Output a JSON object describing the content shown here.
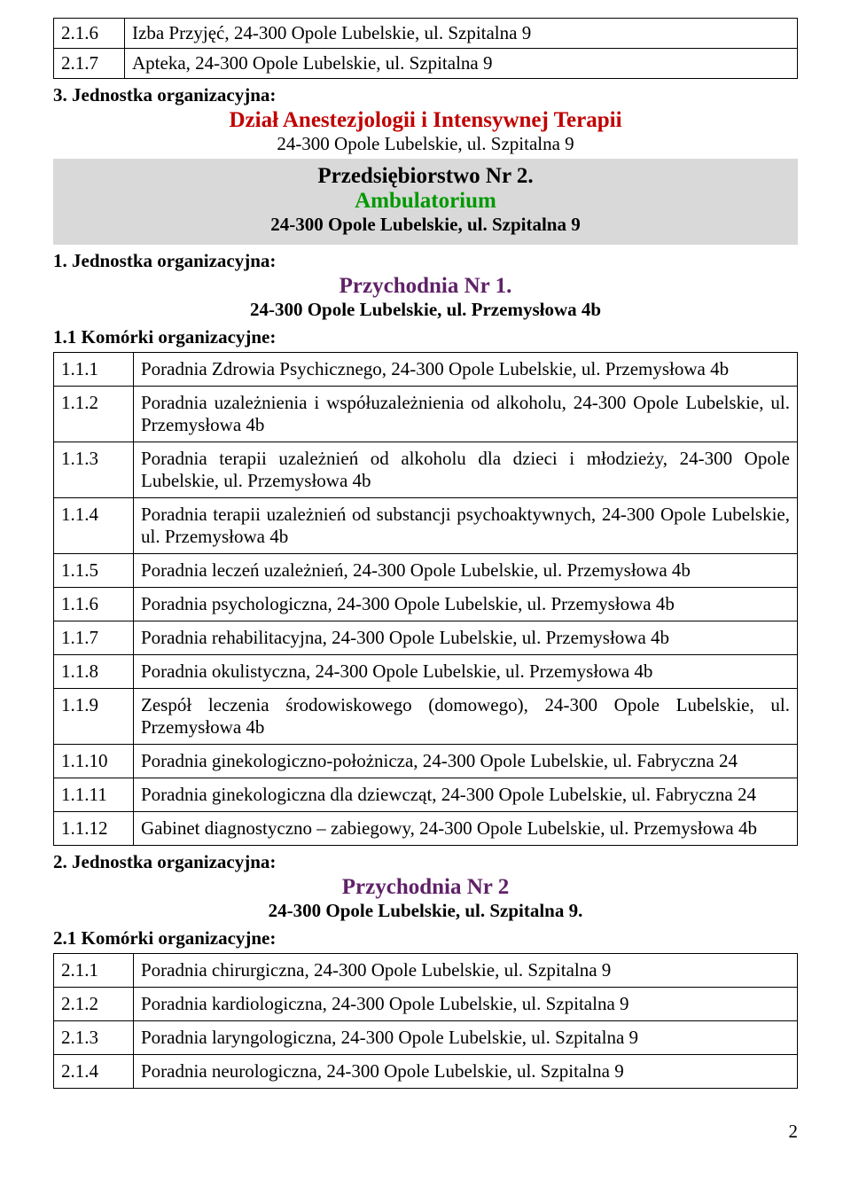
{
  "colors": {
    "red": "#c00000",
    "green": "#009900",
    "purple": "#5f2167",
    "gray_bg": "#d9d9d9",
    "text": "#000000",
    "border": "#000000"
  },
  "font_sizes": {
    "body": 21,
    "title": 25
  },
  "top_rows": [
    {
      "num": "2.1.6",
      "text": "Izba Przyjęć, 24-300 Opole Lubelskie, ul. Szpitalna 9"
    },
    {
      "num": "2.1.7",
      "text": "Apteka, 24-300 Opole Lubelskie, ul. Szpitalna 9"
    }
  ],
  "unit3": {
    "heading": "3. Jednostka organizacyjna:",
    "title": "Dział Anestezjologii i Intensywnej Terapii",
    "address": "24-300 Opole Lubelskie, ul. Szpitalna 9"
  },
  "enterprise": {
    "line1": "Przedsiębiorstwo Nr 2.",
    "line2": "Ambulatorium",
    "address": "24-300 Opole Lubelskie, ul. Szpitalna 9"
  },
  "unit1": {
    "heading": "1. Jednostka organizacyjna:",
    "title": "Przychodnia Nr 1.",
    "address": "24-300 Opole Lubelskie, ul. Przemysłowa 4b"
  },
  "cells1_heading": "1.1 Komórki organizacyjne:",
  "rows1": [
    {
      "num": "1.1.1",
      "text": "Poradnia Zdrowia Psychicznego, 24-300 Opole Lubelskie, ul. Przemysłowa 4b"
    },
    {
      "num": "1.1.2",
      "text": "Poradnia uzależnienia i współuzależnienia od alkoholu, 24-300 Opole Lubelskie, ul. Przemysłowa 4b"
    },
    {
      "num": "1.1.3",
      "text": "Poradnia terapii uzależnień od alkoholu dla dzieci i młodzieży, 24-300 Opole Lubelskie, ul. Przemysłowa 4b"
    },
    {
      "num": "1.1.4",
      "text": "Poradnia terapii uzależnień od substancji psychoaktywnych, 24-300 Opole Lubelskie, ul. Przemysłowa 4b"
    },
    {
      "num": "1.1.5",
      "text": "Poradnia leczeń uzależnień, 24-300 Opole Lubelskie, ul. Przemysłowa 4b"
    },
    {
      "num": "1.1.6",
      "text": "Poradnia psychologiczna, 24-300 Opole Lubelskie, ul. Przemysłowa 4b"
    },
    {
      "num": "1.1.7",
      "text": "Poradnia rehabilitacyjna, 24-300 Opole Lubelskie, ul. Przemysłowa 4b"
    },
    {
      "num": "1.1.8",
      "text": "Poradnia okulistyczna, 24-300 Opole Lubelskie, ul. Przemysłowa 4b"
    },
    {
      "num": "1.1.9",
      "text": "Zespół leczenia środowiskowego (domowego), 24-300 Opole Lubelskie, ul. Przemysłowa 4b"
    },
    {
      "num": "1.1.10",
      "text": "Poradnia ginekologiczno-położnicza, 24-300 Opole Lubelskie, ul. Fabryczna 24"
    },
    {
      "num": "1.1.11",
      "text": "Poradnia ginekologiczna dla dziewcząt, 24-300 Opole Lubelskie, ul. Fabryczna 24"
    },
    {
      "num": "1.1.12",
      "text": "Gabinet diagnostyczno – zabiegowy, 24-300 Opole Lubelskie, ul. Przemysłowa 4b"
    }
  ],
  "unit2": {
    "heading": "2. Jednostka organizacyjna:",
    "title": "Przychodnia Nr 2",
    "address": "24-300 Opole Lubelskie, ul. Szpitalna 9."
  },
  "cells2_heading": "2.1 Komórki organizacyjne:",
  "rows2": [
    {
      "num": "2.1.1",
      "text": "Poradnia chirurgiczna, 24-300 Opole Lubelskie, ul. Szpitalna 9"
    },
    {
      "num": "2.1.2",
      "text": "Poradnia kardiologiczna, 24-300 Opole Lubelskie, ul. Szpitalna 9"
    },
    {
      "num": "2.1.3",
      "text": "Poradnia laryngologiczna, 24-300 Opole Lubelskie, ul. Szpitalna 9"
    },
    {
      "num": "2.1.4",
      "text": "Poradnia neurologiczna, 24-300 Opole Lubelskie, ul. Szpitalna 9"
    }
  ],
  "page_number": "2"
}
